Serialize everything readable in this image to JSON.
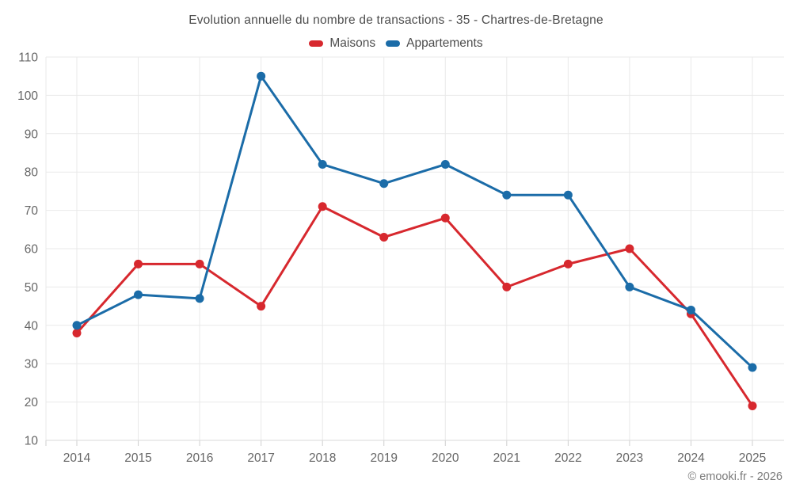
{
  "title": "Evolution annuelle du nombre de transactions - 35 - Chartres-de-Bretagne",
  "copyright": "© emooki.fr - 2026",
  "colors": {
    "maisons_red": "#d7282e",
    "appartements_blue": "#1b6ca8",
    "grid": "#e9e9e9",
    "axis_line": "#d9d9d9",
    "tick": "#cfcfcf",
    "axis_text": "#666666",
    "title_text": "#4d4d4d",
    "copyright_text": "#7b7b7b"
  },
  "chart_data": {
    "type": "line",
    "title": "Evolution annuelle du nombre de transactions - 35 - Chartres-de-Bretagne",
    "categories": [
      "2014",
      "2015",
      "2016",
      "2017",
      "2018",
      "2019",
      "2020",
      "2021",
      "2022",
      "2023",
      "2024",
      "2025"
    ],
    "series": [
      {
        "name": "Maisons",
        "color": "#d7282e",
        "values": [
          38,
          56,
          56,
          45,
          71,
          63,
          68,
          50,
          56,
          60,
          43,
          19
        ]
      },
      {
        "name": "Appartements",
        "color": "#1b6ca8",
        "values": [
          40,
          48,
          47,
          105,
          82,
          77,
          82,
          74,
          74,
          50,
          44,
          29
        ]
      }
    ],
    "ylim": [
      10,
      110
    ],
    "ytick_step": 10,
    "yticks": [
      10,
      20,
      30,
      40,
      50,
      60,
      70,
      80,
      90,
      100,
      110
    ],
    "xlabel": "",
    "ylabel": "",
    "grid": true,
    "legend_position": "top"
  }
}
